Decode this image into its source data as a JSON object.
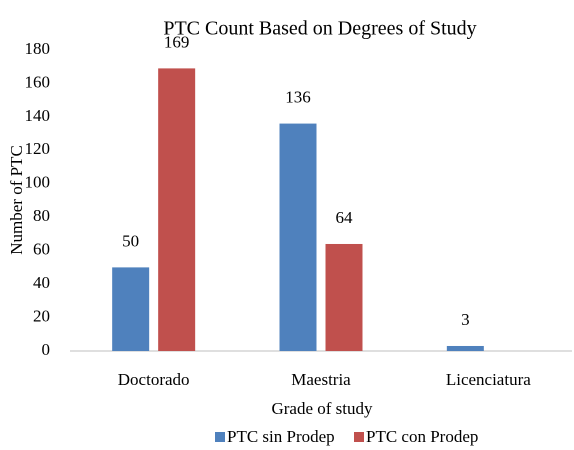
{
  "chart_data": {
    "type": "bar",
    "title": "PTC Count Based on Degrees of Study",
    "x_label": "Grade of study",
    "y_label": "Number of PTC",
    "categories": [
      "Doctorado",
      "Maestria",
      "Licenciatura"
    ],
    "series": [
      {
        "name": "PTC sin Prodep",
        "color": "#4f81bd",
        "values": [
          50,
          136,
          3
        ]
      },
      {
        "name": "PTC con Prodep",
        "color": "#c0504d",
        "values": [
          169,
          64,
          null
        ]
      }
    ],
    "ylim": [
      0,
      180
    ],
    "yticks": [
      0,
      20,
      40,
      60,
      80,
      100,
      120,
      140,
      160,
      180
    ],
    "grid": false,
    "legend": "bottom"
  }
}
